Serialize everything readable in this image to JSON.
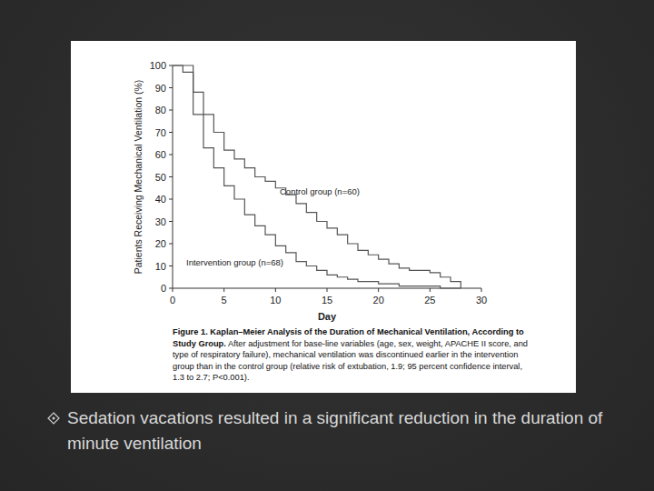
{
  "chart_data": {
    "type": "step",
    "title": "Figure 1. Kaplan–Meier Analysis of the Duration of Mechanical Ventilation, According to Study Group.",
    "subtitle": "After adjustment for base-line variables (age, sex, weight, APACHE II score, and type of respiratory failure), mechanical ventilation was discontinued earlier in the intervention group than in the control group (relative risk of extubation, 1.9; 95 percent confidence interval, 1.3 to 2.7; P<0.001).",
    "x_label": "Day",
    "y_label": "Patients Receiving Mechanical Ventilation (%)",
    "x": [
      0,
      1,
      2,
      3,
      4,
      5,
      6,
      7,
      8,
      9,
      10,
      11,
      12,
      13,
      14,
      15,
      16,
      17,
      18,
      19,
      20,
      21,
      22,
      23,
      24,
      25,
      26,
      27,
      28
    ],
    "series": [
      {
        "name": "Control group (n=60)",
        "color": "#555555",
        "line_style": "solid",
        "values": [
          100,
          100,
          88,
          78,
          70,
          62,
          58,
          54,
          50,
          48,
          45,
          42,
          38,
          34,
          30,
          27,
          24,
          20,
          17,
          15,
          13,
          11,
          9,
          8,
          8,
          7,
          5,
          3,
          0
        ]
      },
      {
        "name": "Intervention group (n=68)",
        "color": "#555555",
        "line_style": "solid",
        "values": [
          100,
          97,
          78,
          63,
          54,
          46,
          40,
          33,
          28,
          24,
          19,
          16,
          12,
          10,
          8,
          6,
          5,
          4,
          3,
          3,
          2,
          2,
          1,
          1,
          1,
          1,
          0,
          0,
          0
        ]
      }
    ],
    "xlim": [
      0,
      30
    ],
    "xticks": [
      0,
      5,
      10,
      15,
      20,
      25,
      30
    ],
    "ylim": [
      0,
      100
    ],
    "yticks": [
      0,
      10,
      20,
      30,
      40,
      50,
      60,
      70,
      80,
      90,
      100
    ],
    "grid": false
  },
  "slide": {
    "bullet": "Sedation vacations resulted in a significant reduction in the duration of minute ventilation"
  }
}
